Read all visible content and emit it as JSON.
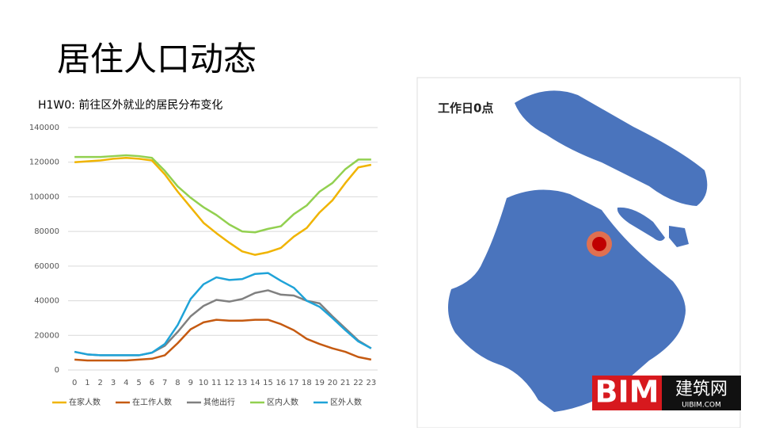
{
  "slide_title": "居住人口动态",
  "map": {
    "label": "工作日0点"
  },
  "logo": {
    "main": "BIM",
    "side": "建筑网",
    "url": "UIBIM.COM"
  },
  "chart_data": {
    "type": "line",
    "title": "H1W0: 前往区外就业的居民分布变化",
    "categories": [
      "0",
      "1",
      "2",
      "3",
      "4",
      "5",
      "6",
      "7",
      "8",
      "9",
      "10",
      "11",
      "12",
      "13",
      "14",
      "15",
      "16",
      "17",
      "18",
      "19",
      "20",
      "21",
      "22",
      "23"
    ],
    "ylim": [
      0,
      140000
    ],
    "yticks": [
      0,
      20000,
      40000,
      60000,
      80000,
      100000,
      120000,
      140000
    ],
    "grid": true,
    "legend": "bottom",
    "series": [
      {
        "name": "在家人数",
        "color": "#f0b400",
        "values": [
          120000,
          120500,
          121000,
          122000,
          122500,
          122000,
          121000,
          113000,
          103000,
          94000,
          85000,
          79000,
          73500,
          68500,
          66500,
          68000,
          70500,
          77000,
          82000,
          91000,
          98000,
          108000,
          117000,
          118500
        ]
      },
      {
        "name": "在工作人数",
        "color": "#c55a11",
        "values": [
          6000,
          5500,
          5500,
          5500,
          5500,
          6000,
          6500,
          8500,
          15500,
          23500,
          27500,
          29000,
          28500,
          28500,
          29000,
          29000,
          26500,
          23000,
          18000,
          15000,
          12500,
          10500,
          7500,
          6000
        ]
      },
      {
        "name": "其他出行",
        "color": "#808080",
        "values": [
          10500,
          9000,
          8500,
          8500,
          8500,
          8500,
          10000,
          14000,
          22000,
          31000,
          37000,
          40500,
          39500,
          41000,
          44500,
          46000,
          43500,
          43000,
          40000,
          38500,
          31000,
          24000,
          17000,
          12500
        ]
      },
      {
        "name": "区内人数",
        "color": "#92d050",
        "values": [
          123000,
          123000,
          123000,
          123500,
          124000,
          123500,
          122500,
          115000,
          106000,
          99500,
          94000,
          89500,
          84000,
          80000,
          79500,
          81500,
          83000,
          90000,
          95000,
          103000,
          108000,
          116000,
          121500,
          121500
        ]
      },
      {
        "name": "区外人数",
        "color": "#1fa3d8",
        "values": [
          10500,
          9000,
          8500,
          8500,
          8500,
          8500,
          10000,
          15000,
          26000,
          41000,
          49500,
          53500,
          52000,
          52500,
          55500,
          56000,
          51500,
          47500,
          40000,
          36500,
          30000,
          23000,
          16500,
          12500
        ]
      }
    ]
  }
}
